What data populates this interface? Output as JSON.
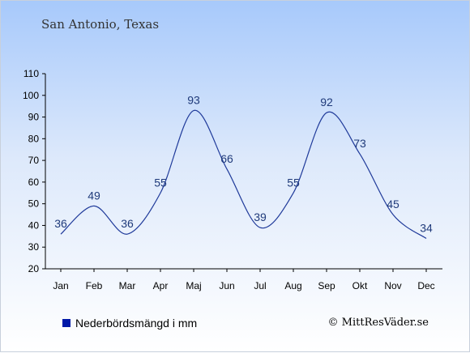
{
  "header": {
    "title": "San Antonio, Texas"
  },
  "legend": {
    "label": "Nederbördsmängd i mm",
    "color": "#0019a8"
  },
  "credit": {
    "text": "© MittResVäder.se"
  },
  "chart_data": {
    "type": "line",
    "categories": [
      "Jan",
      "Feb",
      "Mar",
      "Apr",
      "Maj",
      "Jun",
      "Jul",
      "Aug",
      "Sep",
      "Okt",
      "Nov",
      "Dec"
    ],
    "series": [
      {
        "name": "Nederbördsmängd i mm",
        "values": [
          36,
          49,
          36,
          55,
          93,
          66,
          39,
          55,
          92,
          73,
          45,
          34
        ],
        "color": "#1f3a9a"
      }
    ],
    "ylim": [
      20,
      110
    ],
    "yticks": [
      20,
      30,
      40,
      50,
      60,
      70,
      80,
      90,
      100,
      110
    ],
    "grid": false,
    "legend_position": "bottom-left"
  }
}
